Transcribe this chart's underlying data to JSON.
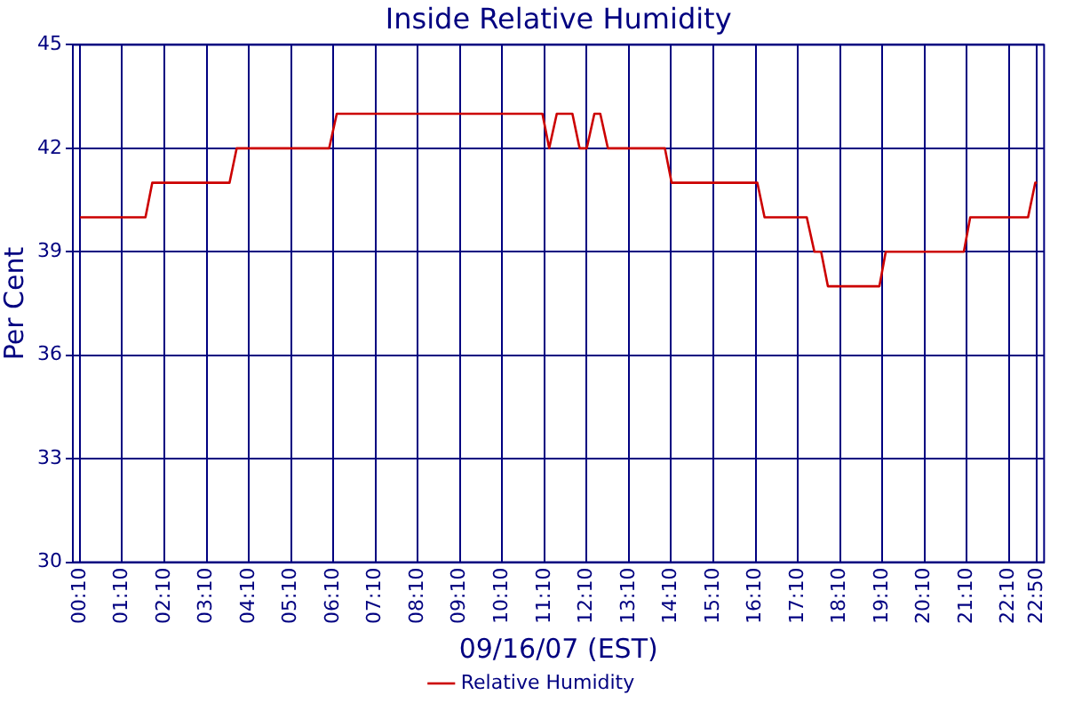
{
  "chart_data": {
    "type": "line",
    "title": "Inside Relative Humidity",
    "xlabel": "09/16/07 (EST)",
    "ylabel": "Per Cent",
    "x": [
      0.17,
      1.72,
      1.88,
      3.71,
      3.88,
      6.07,
      6.25,
      11.12,
      11.28,
      11.46,
      11.83,
      12.0,
      12.17,
      12.35,
      12.49,
      12.67,
      14.02,
      14.18,
      16.21,
      16.38,
      17.38,
      17.56,
      17.72,
      17.88,
      19.1,
      19.25,
      21.1,
      21.25,
      22.62,
      22.79,
      22.83
    ],
    "series": [
      {
        "name": "Relative Humidity",
        "color": "#cc0000",
        "values": [
          40,
          40,
          41,
          41,
          42,
          42,
          43,
          43,
          42,
          43,
          43,
          42,
          42,
          43,
          43,
          42,
          42,
          41,
          41,
          40,
          40,
          39,
          39,
          38,
          38,
          39,
          39,
          40,
          40,
          41,
          41
        ]
      }
    ],
    "xlim": [
      0,
      23
    ],
    "xticks": [
      {
        "value": 0.1667,
        "label": "00:10"
      },
      {
        "value": 1.1667,
        "label": "01:10"
      },
      {
        "value": 2.1667,
        "label": "02:10"
      },
      {
        "value": 3.1667,
        "label": "03:10"
      },
      {
        "value": 4.1667,
        "label": "04:10"
      },
      {
        "value": 5.1667,
        "label": "05:10"
      },
      {
        "value": 6.1667,
        "label": "06:10"
      },
      {
        "value": 7.1667,
        "label": "07:10"
      },
      {
        "value": 8.1667,
        "label": "08:10"
      },
      {
        "value": 9.1667,
        "label": "09:10"
      },
      {
        "value": 10.1667,
        "label": "10:10"
      },
      {
        "value": 11.1667,
        "label": "11:10"
      },
      {
        "value": 12.1667,
        "label": "12:10"
      },
      {
        "value": 13.1667,
        "label": "13:10"
      },
      {
        "value": 14.1667,
        "label": "14:10"
      },
      {
        "value": 15.1667,
        "label": "15:10"
      },
      {
        "value": 16.1667,
        "label": "16:10"
      },
      {
        "value": 17.1667,
        "label": "17:10"
      },
      {
        "value": 18.1667,
        "label": "18:10"
      },
      {
        "value": 19.1667,
        "label": "19:10"
      },
      {
        "value": 20.1667,
        "label": "20:10"
      },
      {
        "value": 21.1667,
        "label": "21:10"
      },
      {
        "value": 22.1667,
        "label": "22:10"
      },
      {
        "value": 22.8333,
        "label": "22:50"
      }
    ],
    "ylim": [
      30,
      45
    ],
    "yticks": [
      30,
      33,
      36,
      39,
      42,
      45
    ],
    "grid": true,
    "legend": "bottom",
    "marker": "none",
    "line_style": "solid"
  }
}
